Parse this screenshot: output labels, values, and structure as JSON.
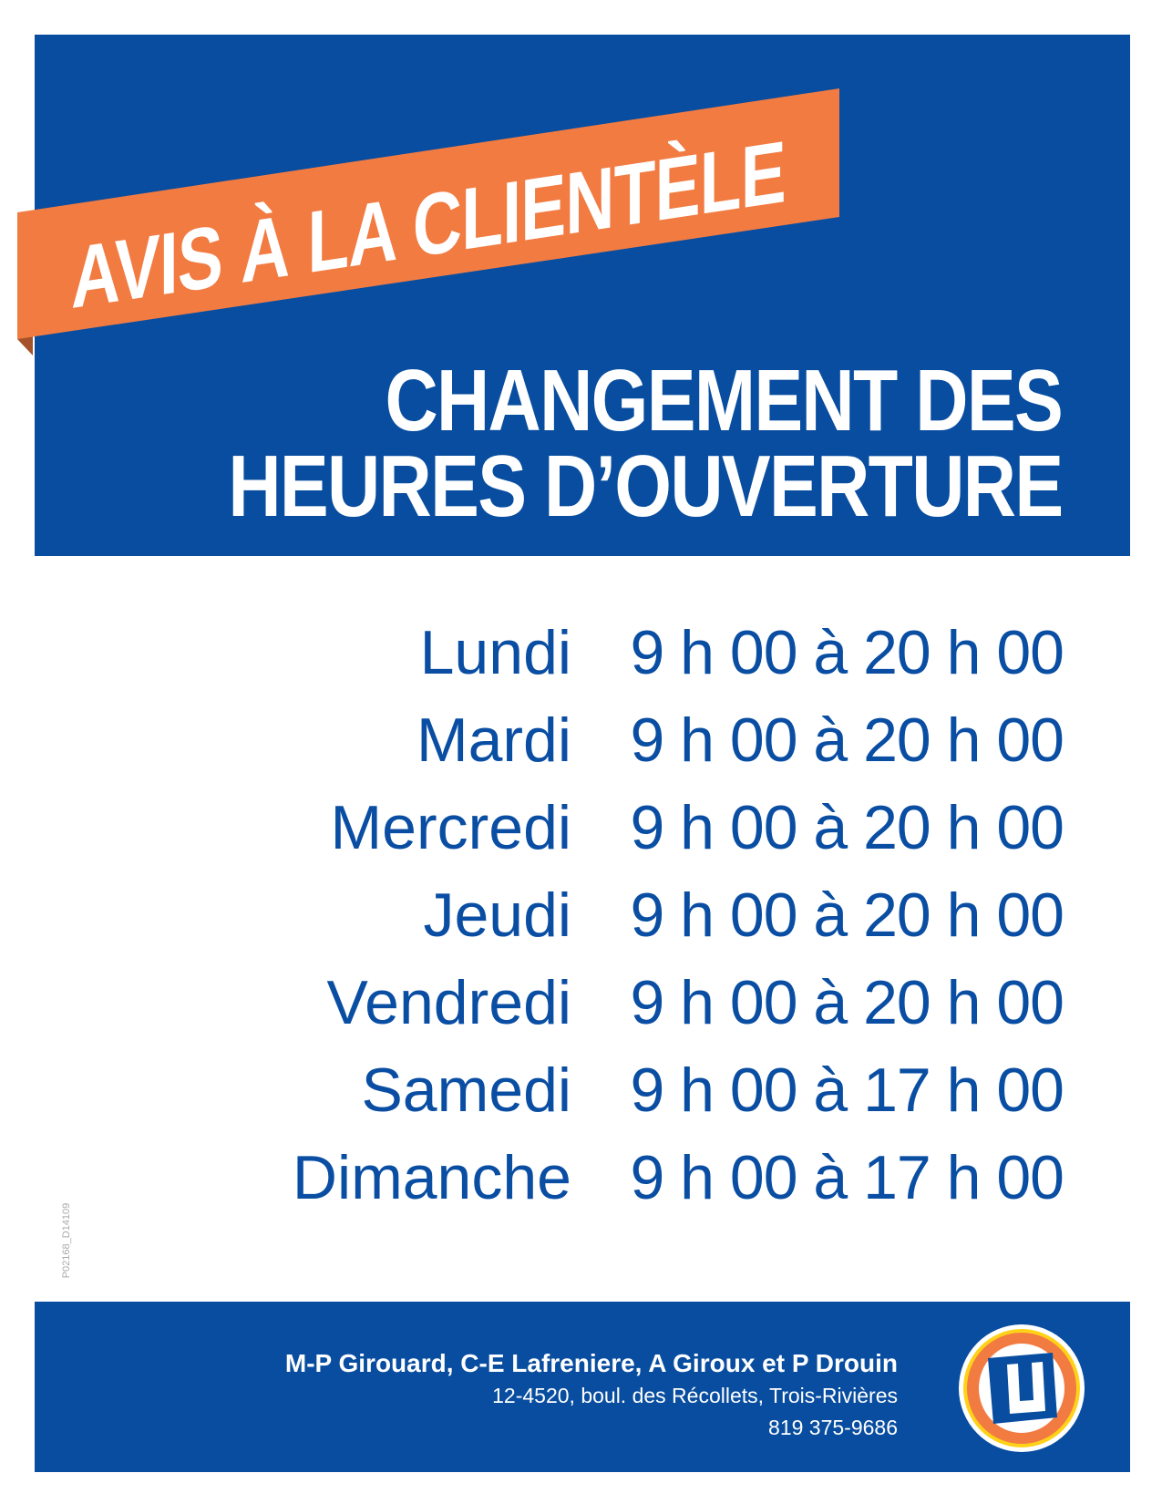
{
  "banner": {
    "label": "AVIS À LA CLIENTÈLE"
  },
  "title": {
    "line1": "CHANGEMENT DES",
    "line2": "HEURES D’OUVERTURE"
  },
  "hours": [
    {
      "day": "Lundi",
      "time": "9 h 00 à 20 h 00"
    },
    {
      "day": "Mardi",
      "time": "9 h 00 à 20 h 00"
    },
    {
      "day": "Mercredi",
      "time": "9 h 00 à 20 h 00"
    },
    {
      "day": "Jeudi",
      "time": "9 h 00 à 20 h 00"
    },
    {
      "day": "Vendredi",
      "time": "9 h 00 à 20 h 00"
    },
    {
      "day": "Samedi",
      "time": "9 h 00 à 17 h 00"
    },
    {
      "day": "Dimanche",
      "time": "9 h 00 à 17 h 00"
    }
  ],
  "side_code": "P02168_D14109",
  "footer": {
    "owners": "M-P Girouard, C-E Lafreniere, A Giroux et P Drouin",
    "address": "12-4520, boul. des Récollets, Trois-Rivières",
    "phone": "819 375-9686",
    "logo_letter": "U"
  },
  "colors": {
    "blue": "#084d9f",
    "orange": "#f27b42",
    "text_blue": "#0a4ea3"
  }
}
